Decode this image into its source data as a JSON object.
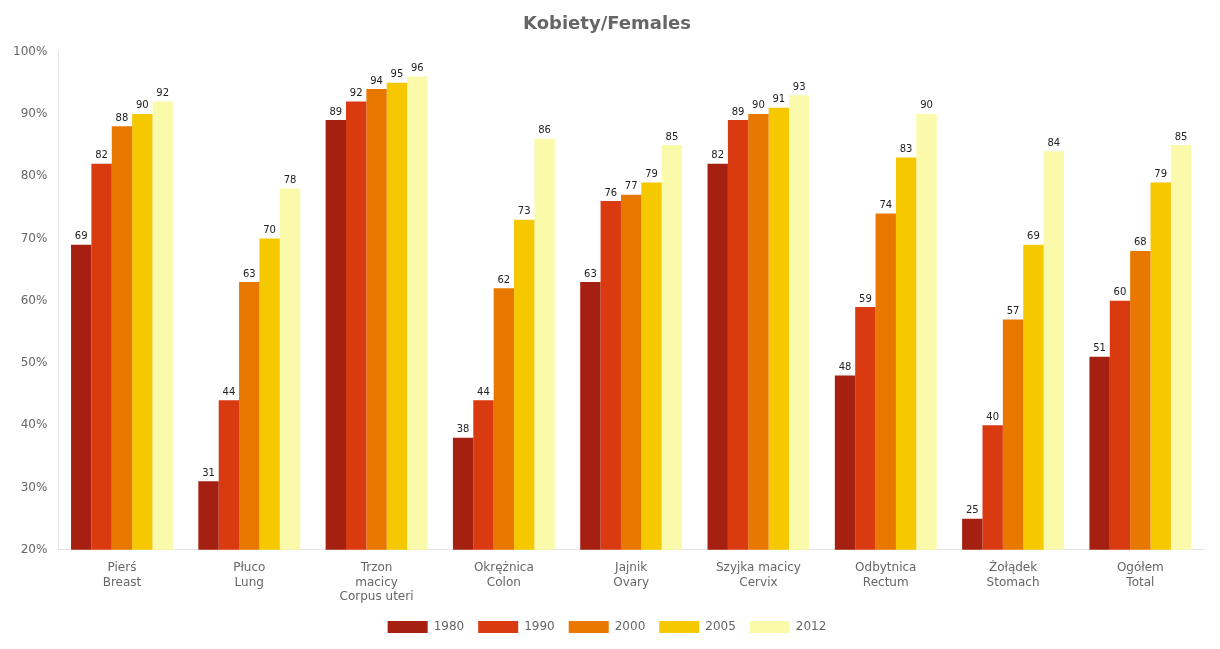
{
  "chart_data": {
    "type": "bar",
    "title": "Kobiety/Females",
    "categories": [
      "Pierś\nBreast",
      "Płuco\nLung",
      "Trzon\nmacicy\nCorpus uteri",
      "Okrężnica\nColon",
      "Jajnik\nOvary",
      "Szyjka macicy\nCervix",
      "Odbytnica\nRectum",
      "Żołądek\nStomach",
      "Ogółem\nTotal"
    ],
    "series": [
      {
        "name": "1980",
        "color": "#A52010",
        "values": [
          69,
          31,
          89,
          38,
          63,
          82,
          48,
          25,
          51
        ]
      },
      {
        "name": "1990",
        "color": "#D93A10",
        "values": [
          82,
          44,
          92,
          44,
          76,
          89,
          59,
          40,
          60
        ]
      },
      {
        "name": "2000",
        "color": "#E87800",
        "values": [
          88,
          63,
          94,
          62,
          77,
          90,
          74,
          57,
          68
        ]
      },
      {
        "name": "2005",
        "color": "#F5C800",
        "values": [
          90,
          70,
          95,
          73,
          79,
          91,
          83,
          69,
          79
        ]
      },
      {
        "name": "2012",
        "color": "#FAFAAA",
        "values": [
          92,
          78,
          96,
          86,
          85,
          93,
          90,
          84,
          85
        ]
      }
    ],
    "ylim": [
      20,
      100
    ],
    "yticks": [
      {
        "value": 20,
        "label": "20%"
      },
      {
        "value": 30,
        "label": "30%"
      },
      {
        "value": 40,
        "label": "40%"
      },
      {
        "value": 50,
        "label": "50%"
      },
      {
        "value": 60,
        "label": "60%"
      },
      {
        "value": 70,
        "label": "70%"
      },
      {
        "value": 80,
        "label": "80%"
      },
      {
        "value": 90,
        "label": "90%"
      },
      {
        "value": 100,
        "label": "100%"
      }
    ],
    "grid": false,
    "legend": "bottom",
    "data_labels": true
  }
}
